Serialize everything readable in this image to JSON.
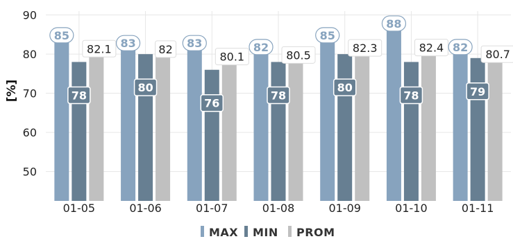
{
  "chart_data": {
    "type": "bar",
    "ylabel": "[%]",
    "ylim": [
      42.5,
      91
    ],
    "yticks": [
      50,
      60,
      70,
      80,
      90
    ],
    "categories": [
      "01-05",
      "01-06",
      "01-07",
      "01-08",
      "01-09",
      "01-10",
      "01-11"
    ],
    "series": [
      {
        "name": "MAX",
        "values": [
          85,
          83,
          83,
          82,
          85,
          88,
          82
        ],
        "color": "#87a3be"
      },
      {
        "name": "MIN",
        "values": [
          78,
          80,
          76,
          78,
          80,
          78,
          79
        ],
        "color": "#677f92"
      },
      {
        "name": "PROM",
        "values": [
          82.1,
          82,
          80.1,
          80.5,
          82.3,
          82.4,
          80.7
        ],
        "color": "#c0c0c0"
      }
    ],
    "grid": true,
    "legend": "bottom-center"
  }
}
